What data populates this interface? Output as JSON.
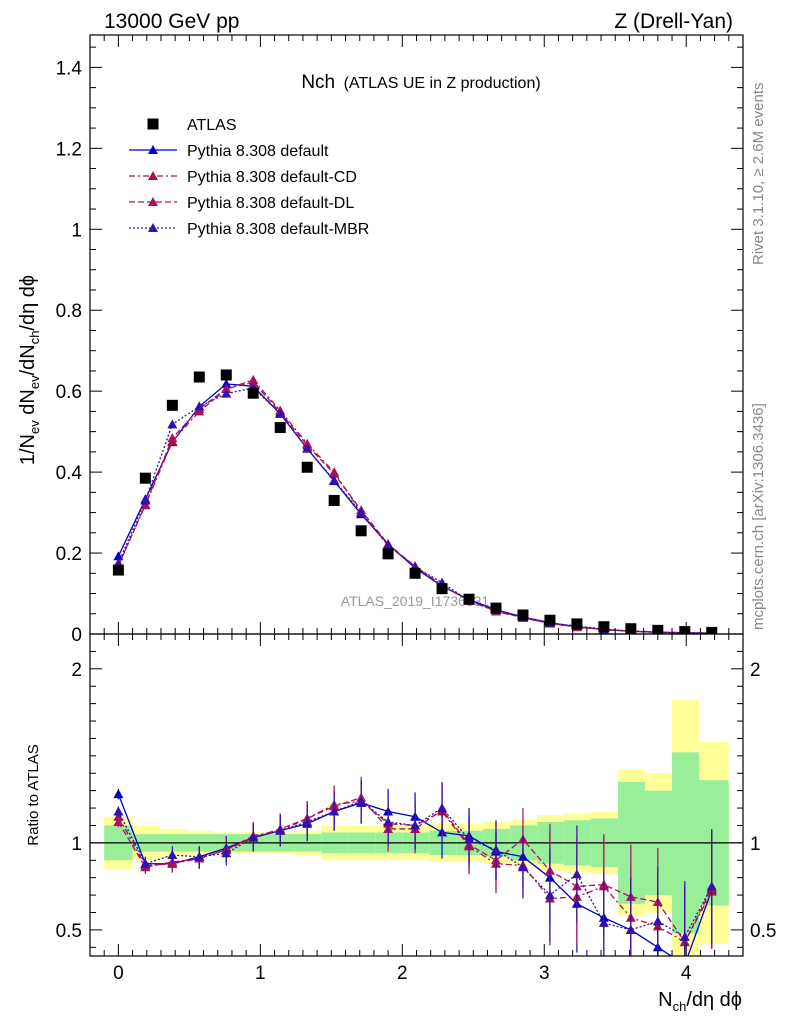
{
  "header": {
    "left": "13000 GeV pp",
    "right": "Z (Drell-Yan)"
  },
  "side_labels": {
    "rivet": "Rivet 3.1.10, ≥ 2.6M events",
    "mcplots": "mcplots.cern.ch [arXiv:1306.3436]"
  },
  "chart_data": {
    "type": "scatter",
    "title_main": "Nch",
    "title_sub": "(ATLAS UE in Z production)",
    "watermark": "ATLAS_2019_I1736531",
    "xlabel": "N",
    "xlabel_sub": "ch",
    "xlabel_rest": "/dη dϕ",
    "ylabel_main": {
      "p1": "1/N",
      "p1s": "ev",
      "p2": " dN",
      "p2s": "ev",
      "p3": "/dN",
      "p3s": "ch",
      "p4": "/dη dϕ"
    },
    "ylabel_ratio": "Ratio to ATLAS",
    "xlim": [
      -0.2,
      4.4
    ],
    "ylim_main": [
      0,
      1.48
    ],
    "ylim_ratio": [
      0.35,
      2.2
    ],
    "x_ticks": [
      0,
      1,
      2,
      3,
      4
    ],
    "x_tick_labels": [
      "0",
      "1",
      "2",
      "3",
      "4"
    ],
    "y_ticks_main": [
      0,
      0.2,
      0.4,
      0.6,
      0.8,
      1,
      1.2,
      1.4
    ],
    "y_tick_labels_main": [
      "0",
      "0.2",
      "0.4",
      "0.6",
      "0.8",
      "1",
      "1.2",
      "1.4"
    ],
    "y_ticks_ratio": [
      0.5,
      1,
      2
    ],
    "y_tick_labels_ratio": [
      "0.5",
      "1",
      "2"
    ],
    "x": [
      0,
      0.19,
      0.38,
      0.57,
      0.76,
      0.95,
      1.14,
      1.33,
      1.52,
      1.71,
      1.9,
      2.09,
      2.28,
      2.47,
      2.66,
      2.85,
      3.04,
      3.23,
      3.42,
      3.61,
      3.8,
      3.99,
      4.18
    ],
    "data": {
      "name": "ATLAS",
      "color": "#000000",
      "values": [
        0.158,
        0.385,
        0.565,
        0.635,
        0.64,
        0.595,
        0.51,
        0.412,
        0.33,
        0.255,
        0.198,
        0.15,
        0.112,
        0.086,
        0.064,
        0.047,
        0.034,
        0.025,
        0.018,
        0.013,
        0.009,
        0.006,
        0.004
      ]
    },
    "series": [
      {
        "name": "Pythia 8.308 default",
        "color": "#0000cc",
        "dash": "",
        "values": [
          0.192,
          0.333,
          0.474,
          0.562,
          0.618,
          0.612,
          0.544,
          0.458,
          0.378,
          0.296,
          0.222,
          0.163,
          0.118,
          0.085,
          0.06,
          0.042,
          0.028,
          0.018,
          0.011,
          0.007,
          0.004,
          0.003,
          0.002
        ],
        "ratio": [
          1.28,
          0.88,
          0.88,
          0.92,
          0.97,
          1.03,
          1.07,
          1.11,
          1.18,
          1.23,
          1.18,
          1.15,
          1.06,
          1.04,
          0.95,
          0.92,
          0.8,
          0.65,
          0.57,
          0.5,
          0.4,
          0.3,
          0.73
        ]
      },
      {
        "name": "Pythia 8.308 default-CD",
        "color": "#aa1144",
        "dash": "6 3 2 3",
        "values": [
          0.17,
          0.318,
          0.476,
          0.55,
          0.605,
          0.628,
          0.552,
          0.47,
          0.4,
          0.3,
          0.218,
          0.168,
          0.12,
          0.082,
          0.056,
          0.04,
          0.026,
          0.017,
          0.011,
          0.007,
          0.005,
          0.003,
          0.002
        ],
        "ratio": [
          1.15,
          0.87,
          0.88,
          0.91,
          0.96,
          1.04,
          1.07,
          1.14,
          1.22,
          1.24,
          1.11,
          1.1,
          1.18,
          0.98,
          0.88,
          0.87,
          0.68,
          0.69,
          0.75,
          0.57,
          0.52,
          0.43,
          0.72
        ]
      },
      {
        "name": "Pythia 8.308 default-DL",
        "color": "#aa1166",
        "dash": "6 3",
        "values": [
          0.168,
          0.32,
          0.484,
          0.556,
          0.606,
          0.622,
          0.548,
          0.466,
          0.396,
          0.306,
          0.222,
          0.167,
          0.12,
          0.084,
          0.056,
          0.041,
          0.027,
          0.017,
          0.011,
          0.007,
          0.005,
          0.003,
          0.002
        ],
        "ratio": [
          1.12,
          0.86,
          0.89,
          0.91,
          0.96,
          1.03,
          1.08,
          1.14,
          1.21,
          1.26,
          1.08,
          1.08,
          1.19,
          0.99,
          0.9,
          1.02,
          0.84,
          0.75,
          0.76,
          0.69,
          0.66,
          0.43,
          0.74
        ]
      },
      {
        "name": "Pythia 8.308 default-MBR",
        "color": "#3311aa",
        "dash": "2 2",
        "values": [
          0.175,
          0.33,
          0.518,
          0.562,
          0.594,
          0.608,
          0.545,
          0.458,
          0.38,
          0.3,
          0.22,
          0.165,
          0.127,
          0.082,
          0.06,
          0.04,
          0.026,
          0.02,
          0.012,
          0.007,
          0.004,
          0.003,
          0.002
        ],
        "ratio": [
          1.18,
          0.88,
          0.93,
          0.92,
          0.94,
          1.03,
          1.07,
          1.12,
          1.18,
          1.24,
          1.12,
          1.1,
          1.2,
          1.02,
          0.96,
          0.86,
          0.7,
          0.82,
          0.54,
          0.5,
          0.55,
          0.46,
          0.75
        ]
      }
    ],
    "ratio_bands": {
      "bin_edges": [
        -0.1,
        0.1,
        0.29,
        0.48,
        0.67,
        0.86,
        1.05,
        1.24,
        1.43,
        1.62,
        1.81,
        2.0,
        2.19,
        2.38,
        2.57,
        2.76,
        2.95,
        3.14,
        3.33,
        3.52,
        3.71,
        3.9,
        4.09,
        4.3
      ],
      "stat_half_width": [
        0.1,
        0.05,
        0.05,
        0.05,
        0.05,
        0.05,
        0.05,
        0.05,
        0.06,
        0.06,
        0.06,
        0.06,
        0.07,
        0.07,
        0.08,
        0.1,
        0.12,
        0.13,
        0.14,
        0.35,
        0.3,
        0.52,
        0.36
      ],
      "total_half_width": [
        0.15,
        0.1,
        0.08,
        0.07,
        0.06,
        0.06,
        0.06,
        0.07,
        0.1,
        0.1,
        0.1,
        0.1,
        0.11,
        0.11,
        0.12,
        0.13,
        0.16,
        0.17,
        0.18,
        0.42,
        0.4,
        0.82,
        0.58
      ],
      "stat_color": "#99ee99",
      "total_color": "#ffff99"
    },
    "legend_position": "top-left",
    "grid": false
  }
}
